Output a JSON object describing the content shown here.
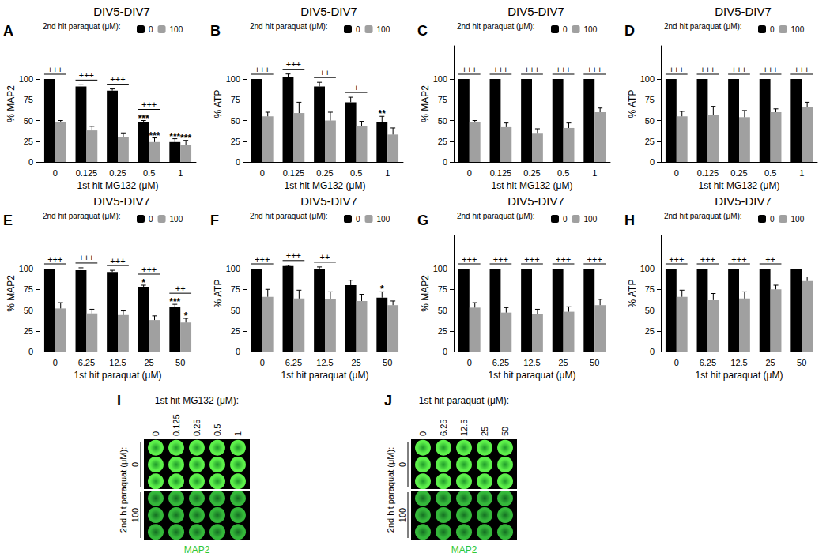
{
  "chart_data": [
    {
      "panel": "A",
      "type": "bar",
      "title": "DIV5-DIV7",
      "x_label": "1st hit MG132 (μM)",
      "y_label": "% MAP2",
      "legend_title": "2nd hit paraquat (μM):",
      "categories": [
        "0",
        "0.125",
        "0.25",
        "0.5",
        "1"
      ],
      "ylim": [
        0,
        140
      ],
      "yticks": [
        0,
        25,
        50,
        75,
        100
      ],
      "series": [
        {
          "name": "0",
          "color": "#000000",
          "values": [
            100,
            91,
            86,
            48,
            24
          ],
          "errors": [
            0,
            2,
            2,
            2,
            4
          ],
          "stars": [
            null,
            null,
            null,
            "***",
            "***"
          ]
        },
        {
          "name": "100",
          "color": "#a0a0a0",
          "values": [
            48,
            38,
            30,
            24,
            20
          ],
          "errors": [
            2,
            5,
            5,
            5,
            6
          ],
          "stars": [
            null,
            null,
            null,
            "***",
            "***"
          ]
        }
      ],
      "significance": [
        "+++",
        "+++",
        "+++",
        "+++",
        null
      ]
    },
    {
      "panel": "B",
      "type": "bar",
      "title": "DIV5-DIV7",
      "x_label": "1st hit MG132 (μM)",
      "y_label": "% ATP",
      "legend_title": "2nd hit paraquat (μM):",
      "categories": [
        "0",
        "0.125",
        "0.25",
        "0.5",
        "1"
      ],
      "ylim": [
        0,
        140
      ],
      "yticks": [
        0,
        25,
        50,
        75,
        100
      ],
      "series": [
        {
          "name": "0",
          "color": "#000000",
          "values": [
            100,
            102,
            91,
            72,
            48
          ],
          "errors": [
            0,
            4,
            5,
            6,
            7
          ],
          "stars": [
            null,
            null,
            null,
            null,
            "**"
          ]
        },
        {
          "name": "100",
          "color": "#a0a0a0",
          "values": [
            55,
            59,
            50,
            43,
            33
          ],
          "errors": [
            5,
            13,
            10,
            6,
            8
          ]
        }
      ],
      "significance": [
        "+++",
        "+++",
        "++",
        "+",
        null
      ]
    },
    {
      "panel": "C",
      "type": "bar",
      "title": "DIV5-DIV7",
      "x_label": "1st hit MG132 (μM)",
      "y_label": "% MAP2",
      "legend_title": "2nd hit paraquat (μM):",
      "categories": [
        "0",
        "0.125",
        "0.25",
        "0.5",
        "1"
      ],
      "ylim": [
        0,
        140
      ],
      "yticks": [
        0,
        25,
        50,
        75,
        100
      ],
      "series": [
        {
          "name": "0",
          "color": "#000000",
          "values": [
            100,
            100,
            100,
            100,
            100
          ],
          "errors": [
            0,
            0,
            0,
            0,
            0
          ]
        },
        {
          "name": "100",
          "color": "#a0a0a0",
          "values": [
            48,
            42,
            35,
            41,
            60
          ],
          "errors": [
            2,
            5,
            5,
            6,
            5
          ]
        }
      ],
      "significance": [
        "+++",
        "+++",
        "+++",
        "+++",
        "+++"
      ]
    },
    {
      "panel": "D",
      "type": "bar",
      "title": "DIV5-DIV7",
      "x_label": "1st hit MG132 (μM)",
      "y_label": "% ATP",
      "legend_title": "2nd hit paraquat (μM):",
      "categories": [
        "0",
        "0.125",
        "0.25",
        "0.5",
        "1"
      ],
      "ylim": [
        0,
        140
      ],
      "yticks": [
        0,
        25,
        50,
        75,
        100
      ],
      "series": [
        {
          "name": "0",
          "color": "#000000",
          "values": [
            100,
            100,
            100,
            100,
            100
          ],
          "errors": [
            0,
            0,
            0,
            0,
            0
          ]
        },
        {
          "name": "100",
          "color": "#a0a0a0",
          "values": [
            55,
            57,
            54,
            60,
            66
          ],
          "errors": [
            6,
            10,
            8,
            4,
            6
          ]
        }
      ],
      "significance": [
        "+++",
        "+++",
        "+++",
        "+++",
        "+++"
      ]
    },
    {
      "panel": "E",
      "type": "bar",
      "title": "DIV5-DIV7",
      "x_label": "1st hit paraquat (μM)",
      "y_label": "% MAP2",
      "legend_title": "2nd hit paraquat (μM):",
      "categories": [
        "0",
        "6.25",
        "12.5",
        "25",
        "50"
      ],
      "ylim": [
        0,
        140
      ],
      "yticks": [
        0,
        25,
        50,
        75,
        100
      ],
      "series": [
        {
          "name": "0",
          "color": "#000000",
          "values": [
            100,
            98,
            96,
            78,
            54
          ],
          "errors": [
            0,
            3,
            2,
            2,
            3
          ],
          "stars": [
            null,
            null,
            null,
            "*",
            "***"
          ]
        },
        {
          "name": "100",
          "color": "#a0a0a0",
          "values": [
            52,
            46,
            44,
            38,
            35
          ],
          "errors": [
            7,
            5,
            5,
            5,
            5
          ],
          "stars": [
            null,
            null,
            null,
            null,
            "*"
          ]
        }
      ],
      "significance": [
        "+++",
        "+++",
        "+++",
        "+++",
        "++"
      ]
    },
    {
      "panel": "F",
      "type": "bar",
      "title": "DIV5-DIV7",
      "x_label": "1st hit paraquat (μM)",
      "y_label": "% ATP",
      "legend_title": "2nd hit paraquat (μM):",
      "categories": [
        "0",
        "6.25",
        "12.5",
        "25",
        "50"
      ],
      "ylim": [
        0,
        140
      ],
      "yticks": [
        0,
        25,
        50,
        75,
        100
      ],
      "series": [
        {
          "name": "0",
          "color": "#000000",
          "values": [
            100,
            103,
            100,
            80,
            65
          ],
          "errors": [
            0,
            1,
            2,
            6,
            7
          ],
          "stars": [
            null,
            null,
            null,
            null,
            "*"
          ]
        },
        {
          "name": "100",
          "color": "#a0a0a0",
          "values": [
            66,
            64,
            63,
            61,
            56
          ],
          "errors": [
            9,
            10,
            9,
            8,
            5
          ]
        }
      ],
      "significance": [
        "+++",
        "+++",
        "++",
        null,
        null
      ]
    },
    {
      "panel": "G",
      "type": "bar",
      "title": "DIV5-DIV7",
      "x_label": "1st hit paraquat (μM)",
      "y_label": "% MAP2",
      "legend_title": "2nd hit paraquat (μM):",
      "categories": [
        "0",
        "6.25",
        "12.5",
        "25",
        "50"
      ],
      "ylim": [
        0,
        140
      ],
      "yticks": [
        0,
        25,
        50,
        75,
        100
      ],
      "series": [
        {
          "name": "0",
          "color": "#000000",
          "values": [
            100,
            100,
            100,
            100,
            100
          ],
          "errors": [
            0,
            0,
            0,
            0,
            0
          ]
        },
        {
          "name": "100",
          "color": "#a0a0a0",
          "values": [
            53,
            47,
            45,
            48,
            56
          ],
          "errors": [
            6,
            6,
            6,
            6,
            7
          ]
        }
      ],
      "significance": [
        "+++",
        "+++",
        "+++",
        "+++",
        "+++"
      ]
    },
    {
      "panel": "H",
      "type": "bar",
      "title": "DIV5-DIV7",
      "x_label": "1st hit paraquat (μM)",
      "y_label": "% ATP",
      "legend_title": "2nd hit paraquat (μM):",
      "categories": [
        "0",
        "6.25",
        "12.5",
        "25",
        "50"
      ],
      "ylim": [
        0,
        140
      ],
      "yticks": [
        0,
        25,
        50,
        75,
        100
      ],
      "series": [
        {
          "name": "0",
          "color": "#000000",
          "values": [
            100,
            100,
            100,
            100,
            100
          ],
          "errors": [
            0,
            0,
            0,
            0,
            0
          ]
        },
        {
          "name": "100",
          "color": "#a0a0a0",
          "values": [
            66,
            62,
            64,
            75,
            85
          ],
          "errors": [
            8,
            8,
            8,
            5,
            5
          ]
        }
      ],
      "significance": [
        "+++",
        "+++",
        "+++",
        "++",
        null
      ]
    }
  ],
  "images": [
    {
      "panel": "I",
      "title": "1st hit MG132 (μM):",
      "columns": [
        "0",
        "0.125",
        "0.25",
        "0.5",
        "1"
      ],
      "row_title": "2nd hit paraquat (μM):",
      "rows": [
        "0",
        "100"
      ],
      "label": "MAP2"
    },
    {
      "panel": "J",
      "title": "1st hit paraquat (μM):",
      "columns": [
        "0",
        "6.25",
        "12.5",
        "25",
        "50"
      ],
      "row_title": "2nd hit paraquat (μM):",
      "rows": [
        "0",
        "100"
      ],
      "label": "MAP2"
    }
  ]
}
